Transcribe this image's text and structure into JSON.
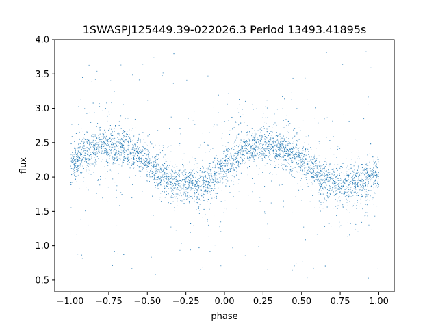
{
  "chart_data": {
    "type": "scatter",
    "title": "1SWASPJ125449.39-022026.3 Period 13493.41895s",
    "xlabel": "phase",
    "ylabel": "flux",
    "xlim": [
      -1.1,
      1.1
    ],
    "ylim": [
      0.33,
      4.0
    ],
    "xticks": [
      -1.0,
      -0.75,
      -0.5,
      -0.25,
      0.0,
      0.25,
      0.5,
      0.75,
      1.0
    ],
    "xtick_labels": [
      "−1.00",
      "−0.75",
      "−0.50",
      "−0.25",
      "0.00",
      "0.25",
      "0.50",
      "0.75",
      "1.00"
    ],
    "yticks": [
      0.5,
      1.0,
      1.5,
      2.0,
      2.5,
      3.0,
      3.5,
      4.0
    ],
    "ytick_labels": [
      "0.5",
      "1.0",
      "1.5",
      "2.0",
      "2.5",
      "3.0",
      "3.5",
      "4.0"
    ],
    "grid": false,
    "marker_color": "#1f77b4",
    "series": [
      {
        "x_range": [
          -1.0,
          1.0
        ],
        "trend": {
          "phase": [
            -1.0,
            -0.875,
            -0.75,
            -0.625,
            -0.5,
            -0.375,
            -0.25,
            -0.125,
            0.0,
            0.125,
            0.25,
            0.375,
            0.5,
            0.625,
            0.75,
            0.875,
            1.0
          ],
          "flux": [
            2.2,
            2.38,
            2.48,
            2.42,
            2.22,
            1.98,
            1.88,
            1.9,
            2.13,
            2.37,
            2.48,
            2.43,
            2.24,
            1.99,
            1.88,
            1.9,
            2.05
          ]
        },
        "typical_scatter": 0.13,
        "outlier_range": [
          0.5,
          3.85
        ]
      }
    ]
  }
}
